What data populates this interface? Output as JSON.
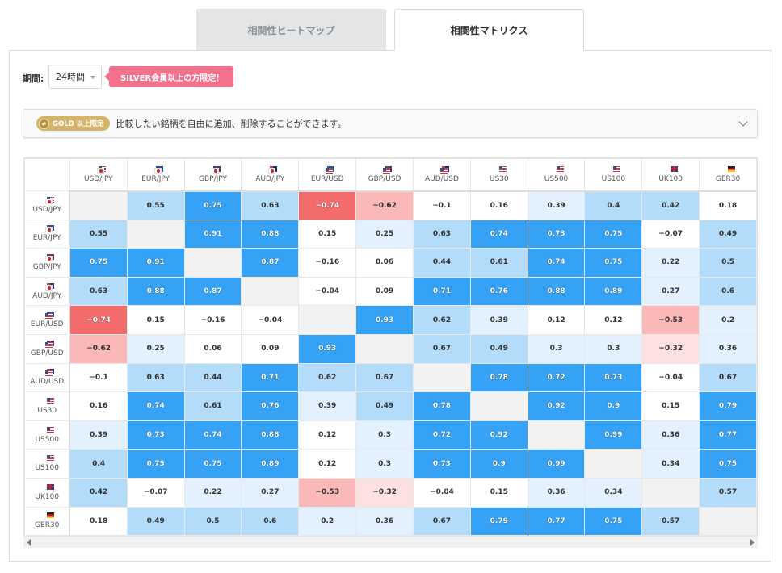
{
  "tabs": [
    {
      "label": "相関性ヒートマップ",
      "active": false
    },
    {
      "label": "相関性マトリクス",
      "active": true
    }
  ],
  "period": {
    "label": "期間:",
    "value": "24時間"
  },
  "silver_badge": "SILVER会員以上の方限定！",
  "gold_bar": {
    "badge": "GOLD 以上限定",
    "text": "比較したい銘柄を自由に追加、削除することができます。"
  },
  "colors": {
    "strong_positive": "#35a2f6",
    "mid_positive": "#b3dcfb",
    "weak_positive": "#e2f1fd",
    "strong_negative": "#f36c6c",
    "mid_negative": "#fab8b8",
    "weak_negative": "#fde0e0",
    "diagonal": "#f2f2f2"
  },
  "matrix": {
    "symbols": [
      {
        "label": "USD/JPY",
        "flags": [
          "us",
          "jp"
        ]
      },
      {
        "label": "EUR/JPY",
        "flags": [
          "eu",
          "jp"
        ]
      },
      {
        "label": "GBP/JPY",
        "flags": [
          "gb",
          "jp"
        ]
      },
      {
        "label": "AUD/JPY",
        "flags": [
          "au",
          "jp"
        ]
      },
      {
        "label": "EUR/USD",
        "flags": [
          "eu",
          "us"
        ]
      },
      {
        "label": "GBP/USD",
        "flags": [
          "gb",
          "us"
        ]
      },
      {
        "label": "AUD/USD",
        "flags": [
          "au",
          "us"
        ]
      },
      {
        "label": "US30",
        "flags": [
          "us"
        ]
      },
      {
        "label": "US500",
        "flags": [
          "us"
        ]
      },
      {
        "label": "US100",
        "flags": [
          "us"
        ]
      },
      {
        "label": "UK100",
        "flags": [
          "gb"
        ]
      },
      {
        "label": "GER30",
        "flags": [
          "de"
        ]
      }
    ],
    "values": [
      [
        null,
        "0.55",
        "0.75",
        "0.63",
        "−0.74",
        "−0.62",
        "−0.1",
        "0.16",
        "0.39",
        "0.4",
        "0.42",
        "0.18"
      ],
      [
        "0.55",
        null,
        "0.91",
        "0.88",
        "0.15",
        "0.25",
        "0.63",
        "0.74",
        "0.73",
        "0.75",
        "−0.07",
        "0.49"
      ],
      [
        "0.75",
        "0.91",
        null,
        "0.87",
        "−0.16",
        "0.06",
        "0.44",
        "0.61",
        "0.74",
        "0.75",
        "0.22",
        "0.5"
      ],
      [
        "0.63",
        "0.88",
        "0.87",
        null,
        "−0.04",
        "0.09",
        "0.71",
        "0.76",
        "0.88",
        "0.89",
        "0.27",
        "0.6"
      ],
      [
        "−0.74",
        "0.15",
        "−0.16",
        "−0.04",
        null,
        "0.93",
        "0.62",
        "0.39",
        "0.12",
        "0.12",
        "−0.53",
        "0.2"
      ],
      [
        "−0.62",
        "0.25",
        "0.06",
        "0.09",
        "0.93",
        null,
        "0.67",
        "0.49",
        "0.3",
        "0.3",
        "−0.32",
        "0.36"
      ],
      [
        "−0.1",
        "0.63",
        "0.44",
        "0.71",
        "0.62",
        "0.67",
        null,
        "0.78",
        "0.72",
        "0.73",
        "−0.04",
        "0.67"
      ],
      [
        "0.16",
        "0.74",
        "0.61",
        "0.76",
        "0.39",
        "0.49",
        "0.78",
        null,
        "0.92",
        "0.9",
        "0.15",
        "0.79"
      ],
      [
        "0.39",
        "0.73",
        "0.74",
        "0.88",
        "0.12",
        "0.3",
        "0.72",
        "0.92",
        null,
        "0.99",
        "0.36",
        "0.77"
      ],
      [
        "0.4",
        "0.75",
        "0.75",
        "0.89",
        "0.12",
        "0.3",
        "0.73",
        "0.9",
        "0.99",
        null,
        "0.34",
        "0.75"
      ],
      [
        "0.42",
        "−0.07",
        "0.22",
        "0.27",
        "−0.53",
        "−0.32",
        "−0.04",
        "0.15",
        "0.36",
        "0.34",
        null,
        "0.57"
      ],
      [
        "0.18",
        "0.49",
        "0.5",
        "0.6",
        "0.2",
        "0.36",
        "0.67",
        "0.79",
        "0.77",
        "0.75",
        "0.57",
        null
      ]
    ]
  }
}
